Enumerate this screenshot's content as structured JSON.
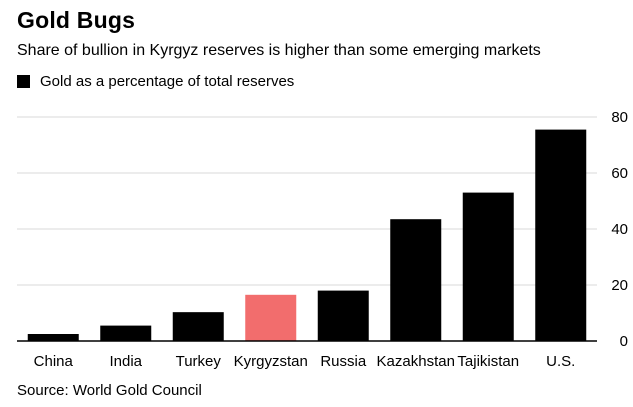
{
  "header": {
    "title": "Gold Bugs",
    "subtitle": "Share of bullion in Kyrgyz reserves is higher than some emerging markets"
  },
  "legend": {
    "label": "Gold as a percentage of total reserves",
    "color": "#000000"
  },
  "footer": {
    "source": "Source: World Gold Council"
  },
  "chart_data": {
    "type": "bar",
    "categories": [
      "China",
      "India",
      "Turkey",
      "Kyrgyzstan",
      "Russia",
      "Kazakhstan",
      "Tajikistan",
      "U.S."
    ],
    "series": [
      {
        "values": [
          2.5,
          5.5,
          10.3,
          16.5,
          18,
          43.5,
          53,
          75.5
        ]
      }
    ],
    "highlight": {
      "category": "Kyrgyzstan",
      "color": "#f26d6d"
    },
    "bar_color": "#000000",
    "ylim": [
      0,
      80
    ],
    "yticks": [
      0,
      20,
      40,
      60,
      80
    ],
    "grid": true,
    "y_axis_side": "right",
    "legend_position": "top-left"
  }
}
